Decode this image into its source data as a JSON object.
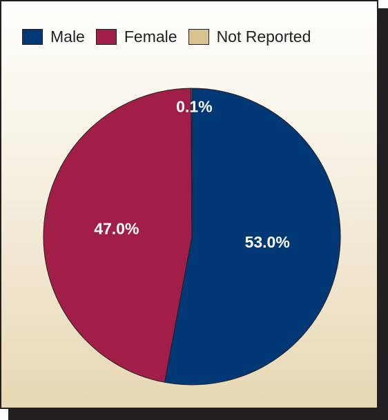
{
  "chart_data": {
    "type": "pie",
    "categories": [
      "Male",
      "Female",
      "Not Reported"
    ],
    "values": [
      53.0,
      47.0,
      0.1
    ],
    "labels": [
      "53.0%",
      "47.0%",
      "0.1%"
    ],
    "colors": [
      "#003876",
      "#a01e48",
      "#d9c38e"
    ],
    "legend": {
      "placement": "top",
      "entries": [
        "Male",
        "Female",
        "Not Reported"
      ]
    }
  }
}
